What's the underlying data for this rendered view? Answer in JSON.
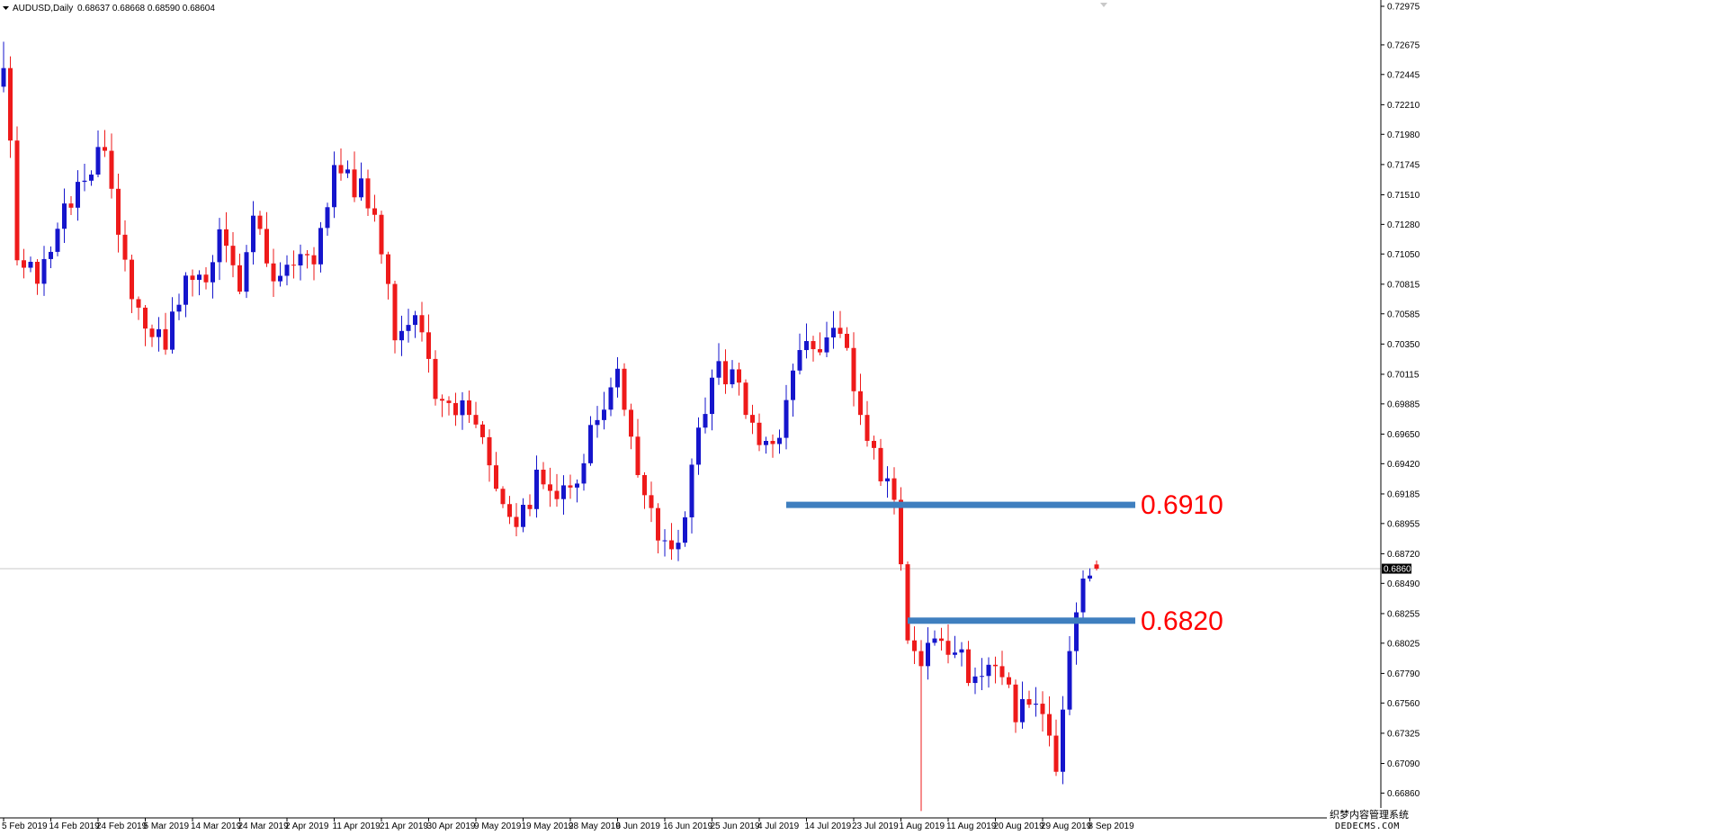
{
  "window": {
    "symbol": "AUDUSD,Daily",
    "ohlc_text": "0.68637 0.68668 0.68590 0.68604",
    "current_price_label": "0.68604"
  },
  "colors": {
    "bull": "#1515cc",
    "bear": "#ee1a1a",
    "level_line": "#3f7fbf",
    "level_text": "#ff0000",
    "axis": "#000000",
    "price_line": "#c8c8c8"
  },
  "watermark": {
    "line1": "织梦内容管理系统",
    "line2": "DEDECMS.COM"
  },
  "chart_data": {
    "type": "candlestick",
    "title": "AUDUSD,Daily",
    "grid": false,
    "ylim": [
      0.6673,
      0.72975
    ],
    "y_ticks": [
      "0.72975",
      "0.72675",
      "0.72445",
      "0.72210",
      "0.71980",
      "0.71745",
      "0.71510",
      "0.71280",
      "0.71050",
      "0.70815",
      "0.70585",
      "0.70350",
      "0.70115",
      "0.69885",
      "0.69650",
      "0.69420",
      "0.69185",
      "0.68955",
      "0.68720",
      "0.68490",
      "0.68255",
      "0.68025",
      "0.67790",
      "0.67560",
      "0.67325",
      "0.67090",
      "0.66860"
    ],
    "x_ticks": [
      {
        "label": "5 Feb 2019",
        "index": 0
      },
      {
        "label": "14 Feb 2019",
        "index": 7
      },
      {
        "label": "24 Feb 2019",
        "index": 14
      },
      {
        "label": "5 Mar 2019",
        "index": 21
      },
      {
        "label": "14 Mar 2019",
        "index": 28
      },
      {
        "label": "24 Mar 2019",
        "index": 35
      },
      {
        "label": "2 Apr 2019",
        "index": 42
      },
      {
        "label": "11 Apr 2019",
        "index": 49
      },
      {
        "label": "21 Apr 2019",
        "index": 56
      },
      {
        "label": "30 Apr 2019",
        "index": 63
      },
      {
        "label": "9 May 2019",
        "index": 70
      },
      {
        "label": "19 May 2019",
        "index": 77
      },
      {
        "label": "28 May 2019",
        "index": 84
      },
      {
        "label": "6 Jun 2019",
        "index": 91
      },
      {
        "label": "16 Jun 2019",
        "index": 98
      },
      {
        "label": "25 Jun 2019",
        "index": 105
      },
      {
        "label": "4 Jul 2019",
        "index": 112
      },
      {
        "label": "14 Jul 2019",
        "index": 119
      },
      {
        "label": "23 Jul 2019",
        "index": 126
      },
      {
        "label": "1 Aug 2019",
        "index": 133
      },
      {
        "label": "11 Aug 2019",
        "index": 140
      },
      {
        "label": "20 Aug 2019",
        "index": 147
      },
      {
        "label": "29 Aug 2019",
        "index": 154
      },
      {
        "label": "8 Sep 2019",
        "index": 161
      }
    ],
    "current_price": 0.68604,
    "levels": [
      {
        "value": 0.691,
        "label": "0.6910",
        "from_index": 116
      },
      {
        "value": 0.682,
        "label": "0.6820",
        "from_index": 134
      }
    ],
    "anchors": [
      [
        0,
        0.726
      ],
      [
        2,
        0.7105
      ],
      [
        5,
        0.709
      ],
      [
        9,
        0.7145
      ],
      [
        12,
        0.7165
      ],
      [
        15,
        0.719
      ],
      [
        18,
        0.709
      ],
      [
        21,
        0.7045
      ],
      [
        24,
        0.7035
      ],
      [
        27,
        0.7085
      ],
      [
        30,
        0.7085
      ],
      [
        32,
        0.7125
      ],
      [
        35,
        0.7085
      ],
      [
        37,
        0.714
      ],
      [
        40,
        0.708
      ],
      [
        43,
        0.7105
      ],
      [
        46,
        0.7095
      ],
      [
        49,
        0.718
      ],
      [
        52,
        0.716
      ],
      [
        55,
        0.7145
      ],
      [
        58,
        0.704
      ],
      [
        61,
        0.705
      ],
      [
        64,
        0.7
      ],
      [
        67,
        0.6985
      ],
      [
        70,
        0.6975
      ],
      [
        73,
        0.693
      ],
      [
        76,
        0.6885
      ],
      [
        79,
        0.693
      ],
      [
        82,
        0.692
      ],
      [
        85,
        0.693
      ],
      [
        88,
        0.6985
      ],
      [
        91,
        0.7005
      ],
      [
        94,
        0.694
      ],
      [
        97,
        0.6885
      ],
      [
        100,
        0.688
      ],
      [
        103,
        0.6965
      ],
      [
        106,
        0.7015
      ],
      [
        109,
        0.7
      ],
      [
        112,
        0.695
      ],
      [
        115,
        0.6955
      ],
      [
        118,
        0.704
      ],
      [
        121,
        0.7035
      ],
      [
        124,
        0.704
      ],
      [
        127,
        0.6985
      ],
      [
        130,
        0.6935
      ],
      [
        132,
        0.6905
      ],
      [
        134,
        0.6815
      ],
      [
        136,
        0.678
      ],
      [
        138,
        0.681
      ],
      [
        140,
        0.6785
      ],
      [
        142,
        0.679
      ],
      [
        144,
        0.677
      ],
      [
        146,
        0.6785
      ],
      [
        148,
        0.678
      ],
      [
        150,
        0.6745
      ],
      [
        152,
        0.6765
      ],
      [
        154,
        0.674
      ],
      [
        156,
        0.671
      ],
      [
        158,
        0.6795
      ],
      [
        160,
        0.6855
      ],
      [
        162,
        0.6865
      ]
    ],
    "range_notes": {
      "min_low": 0.6672,
      "max_high": 0.727
    }
  }
}
